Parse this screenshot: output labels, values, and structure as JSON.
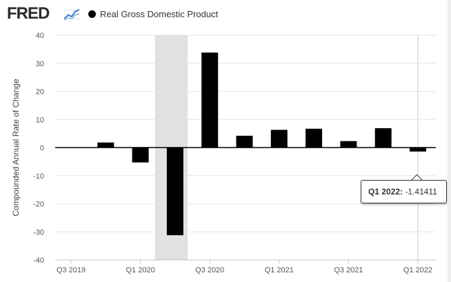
{
  "header": {
    "brand": "FRED",
    "brand_icon": "line-chart-icon",
    "legend_label": "Real Gross Domestic Product"
  },
  "tooltip": {
    "label": "Q1 2022:",
    "value": "-1.41411"
  },
  "chart_data": {
    "type": "bar",
    "title": "",
    "xlabel": "",
    "ylabel": "Compounded Annual Rate of Change",
    "ylim": [
      -40,
      40
    ],
    "yticks": [
      40,
      30,
      20,
      10,
      0,
      -10,
      -20,
      -30,
      -40
    ],
    "grid": "horizontal",
    "categories": [
      "Q3 2019",
      "Q4 2019",
      "Q1 2020",
      "Q2 2020",
      "Q3 2020",
      "Q4 2020",
      "Q1 2021",
      "Q2 2021",
      "Q3 2021",
      "Q4 2021",
      "Q1 2022"
    ],
    "x_tick_labels": [
      "Q3 2019",
      "Q1 2020",
      "Q3 2020",
      "Q1 2021",
      "Q3 2021",
      "Q1 2022"
    ],
    "series": [
      {
        "name": "Real Gross Domestic Product",
        "color": "#000000",
        "values": [
          null,
          1.8,
          -5.3,
          -31.2,
          33.8,
          4.2,
          6.3,
          6.7,
          2.3,
          6.9,
          -1.41411
        ]
      }
    ],
    "recession_shading": {
      "from": "Q1 2020",
      "to": "Q2 2020",
      "color": "#e1e1e1"
    },
    "highlighted": "Q1 2022"
  }
}
